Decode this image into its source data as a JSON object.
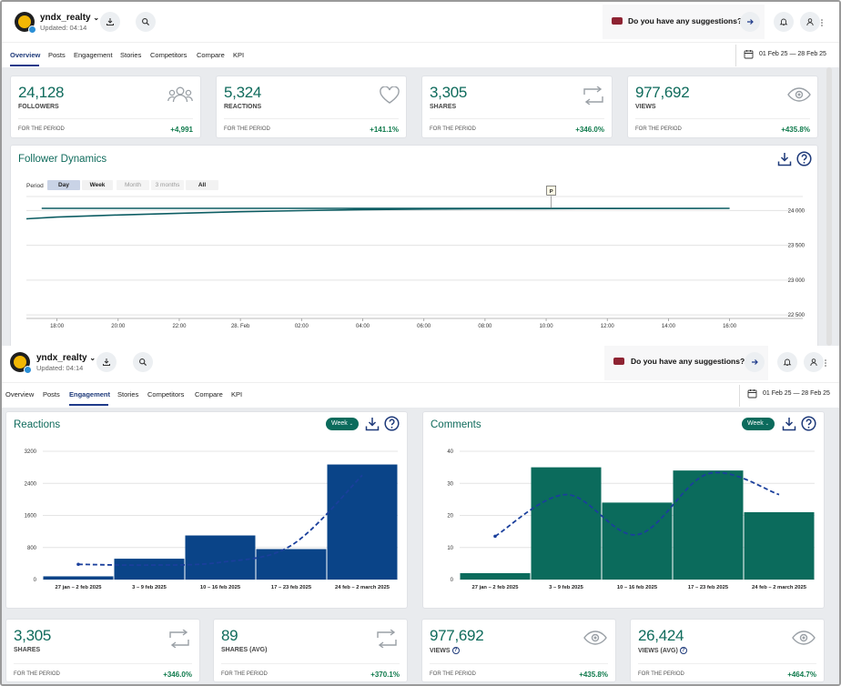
{
  "screen1": {
    "account": {
      "name": "yndx_realty",
      "updated": "Updated: 04:14"
    },
    "suggestion": "Do you have any suggestions?",
    "tabs": [
      "Overview",
      "Posts",
      "Engagement",
      "Stories",
      "Competitors",
      "Compare",
      "KPI"
    ],
    "active_tab": "Overview",
    "date_range": "01 Feb 25 — 28 Feb 25",
    "stats": [
      {
        "value": "24,128",
        "label": "FOLLOWERS",
        "period": "FOR THE PERIOD",
        "delta": "+4,991",
        "icon": "users-icon"
      },
      {
        "value": "5,324",
        "label": "REACTIONS",
        "period": "FOR THE PERIOD",
        "delta": "+141.1%",
        "icon": "heart-icon"
      },
      {
        "value": "3,305",
        "label": "SHARES",
        "period": "FOR THE PERIOD",
        "delta": "+346.0%",
        "icon": "repost-icon"
      },
      {
        "value": "977,692",
        "label": "VIEWS",
        "period": "FOR THE PERIOD",
        "delta": "+435.8%",
        "icon": "eye-icon"
      }
    ],
    "follower_chart": {
      "title": "Follower Dynamics",
      "period_label": "Period",
      "period_options": [
        "Day",
        "Week",
        "Month",
        "3 months",
        "All"
      ],
      "selected_period": "Day",
      "marker": "P"
    }
  },
  "screen2": {
    "account": {
      "name": "yndx_realty",
      "updated": "Updated: 04:14"
    },
    "suggestion": "Do you have any suggestions?",
    "tabs": [
      "Overview",
      "Posts",
      "Engagement",
      "Stories",
      "Competitors",
      "Compare",
      "KPI"
    ],
    "active_tab": "Engagement",
    "date_range": "01 Feb 25 — 28 Feb 25",
    "reactions_panel": {
      "title": "Reactions",
      "period": "Week"
    },
    "comments_panel": {
      "title": "Comments",
      "period": "Week"
    },
    "stats": [
      {
        "value": "3,305",
        "label": "SHARES",
        "period": "FOR THE PERIOD",
        "delta": "+346.0%",
        "icon": "repost-icon"
      },
      {
        "value": "89",
        "label": "SHARES (AVG)",
        "period": "FOR THE PERIOD",
        "delta": "+370.1%",
        "icon": "repost-icon"
      },
      {
        "value": "977,692",
        "label": "VIEWS",
        "period": "FOR THE PERIOD",
        "delta": "+435.8%",
        "icon": "eye-icon"
      },
      {
        "value": "26,424",
        "label": "VIEWS (AVG)",
        "period": "FOR THE PERIOD",
        "delta": "+464.7%",
        "icon": "eye-icon"
      }
    ]
  },
  "colors": {
    "teal": "#0f6b5c",
    "navy_bar": "#0a4488",
    "teal_bar": "#0b6b5c",
    "trend": "#1a3f9c",
    "delta_green": "#0f7a4c"
  },
  "chart_data": [
    {
      "type": "line",
      "x_ticks": [
        "18:00",
        "20:00",
        "22:00",
        "28. Feb",
        "02:00",
        "04:00",
        "06:00",
        "08:00",
        "10:00",
        "12:00",
        "14:00",
        "16:00"
      ],
      "x": [
        "17:00",
        "18:00",
        "20:00",
        "22:00",
        "00:00",
        "02:00",
        "04:00",
        "06:00",
        "08:00",
        "10:00",
        "12:00",
        "14:00",
        "16:00",
        "17:30"
      ],
      "values": [
        23880,
        23905,
        23935,
        23960,
        23982,
        23998,
        24012,
        24020,
        24024,
        24026,
        24028,
        24029,
        24030,
        24030
      ],
      "y_ticks": [
        24000,
        23500,
        23000,
        22500
      ],
      "y_tick_labels": [
        "24 000",
        "23 500",
        "23 000",
        "22 500"
      ],
      "ylim": [
        22450,
        24200
      ],
      "grid": true
    },
    {
      "type": "bar",
      "title": "Reactions",
      "categories": [
        "27 jan – 2 feb 2025",
        "3 – 9 feb 2025",
        "10 – 16 feb 2025",
        "17 – 23 feb 2025",
        "24 feb – 2 march 2025"
      ],
      "values": [
        80,
        520,
        1100,
        760,
        2870
      ],
      "trend": [
        380,
        360,
        430,
        850,
        2600
      ],
      "y_ticks": [
        0,
        800,
        1600,
        2400,
        3200
      ],
      "ylim": [
        0,
        3200
      ],
      "grid": true
    },
    {
      "type": "bar",
      "title": "Comments",
      "categories": [
        "27 jan – 2 feb 2025",
        "3 – 9 feb 2025",
        "10 – 16 feb 2025",
        "17 – 23 feb 2025",
        "24 feb – 2 march 2025"
      ],
      "values": [
        2,
        35,
        24,
        34,
        21
      ],
      "trend": [
        13.5,
        26.5,
        14,
        33,
        26.5
      ],
      "y_ticks": [
        0,
        10,
        20,
        30,
        40
      ],
      "ylim": [
        0,
        40
      ],
      "grid": true
    }
  ]
}
